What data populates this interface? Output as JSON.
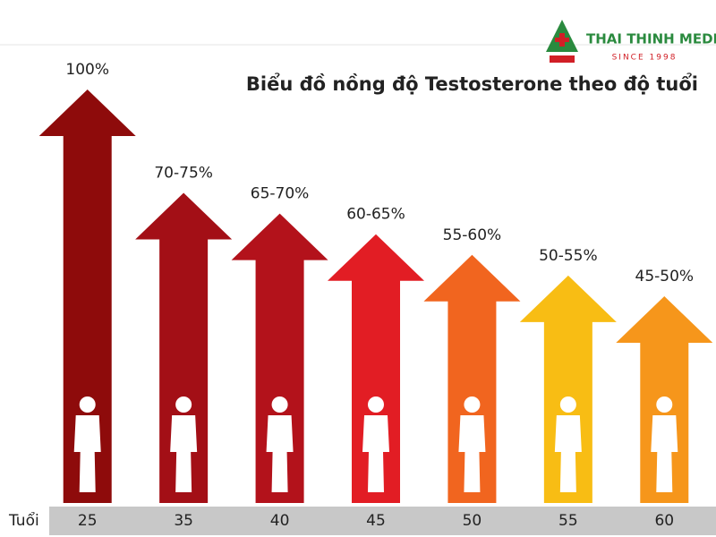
{
  "logo": {
    "name": "THAI THINH MEDIC",
    "since": "SINCE 1998"
  },
  "chart_data": {
    "type": "arrow-bar",
    "title": "Biểu đồ nồng độ Testosterone theo độ tuổi",
    "x_label": "Tuổi",
    "categories": [
      "25",
      "35",
      "40",
      "45",
      "50",
      "55",
      "60"
    ],
    "values": [
      100,
      75,
      70,
      65,
      60,
      55,
      50
    ],
    "value_labels": [
      "100%",
      "70-75%",
      "65-70%",
      "60-65%",
      "55-60%",
      "50-55%",
      "45-50%"
    ],
    "colors": [
      "#8e0b0b",
      "#a30f16",
      "#b3121b",
      "#e21d24",
      "#f1651f",
      "#f8bd14",
      "#f6961b"
    ]
  }
}
